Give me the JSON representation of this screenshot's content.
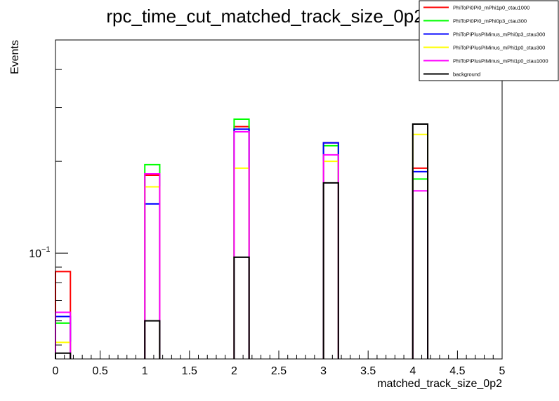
{
  "chart_data": {
    "type": "step-histogram",
    "title": "rpc_time_cut_matched_track_size_0p2_0",
    "xlabel": "matched_track_size_0p2",
    "ylabel": "Events",
    "x_ticks": [
      "0",
      "0.5",
      "1",
      "1.5",
      "2",
      "2.5",
      "3",
      "3.5",
      "4",
      "4.5",
      "5"
    ],
    "xlim": [
      0,
      5
    ],
    "ylim": [
      0.045,
      0.5
    ],
    "log_y": true,
    "y_tick_label": {
      "base": "10",
      "exp": "−1",
      "value": 0.1
    },
    "bin_width": 0.167,
    "bins": [
      0,
      1,
      2,
      3,
      4
    ],
    "legend_position": "top-right",
    "series": [
      {
        "name": "PhiToPi0Pi0_mPhi1p0_ctau1000",
        "color": "#ff0000",
        "values": [
          0.087,
          0.18,
          0.26,
          0.23,
          0.19
        ]
      },
      {
        "name": "PhiToPi0Pi0_mPhi0p3_ctau300",
        "color": "#00ff00",
        "values": [
          0.059,
          0.195,
          0.275,
          0.225,
          0.175
        ]
      },
      {
        "name": "PhiToPiPlusPiMinus_mPhi0p3_ctau300",
        "color": "#0000ff",
        "values": [
          0.062,
          0.145,
          0.255,
          0.23,
          0.185
        ]
      },
      {
        "name": "PhiToPiPlusPiMinus_mPhi1p0_ctau300",
        "color": "#ffff00",
        "values": [
          0.051,
          0.165,
          0.19,
          0.2,
          0.245
        ]
      },
      {
        "name": "PhiToPiPlusPiMinus_mPhi1p0_ctau1000",
        "color": "#ff00ff",
        "values": [
          0.064,
          0.182,
          0.25,
          0.21,
          0.16
        ]
      },
      {
        "name": "background",
        "color": "#000000",
        "values": [
          0.047,
          0.06,
          0.097,
          0.17,
          0.265
        ]
      }
    ]
  }
}
